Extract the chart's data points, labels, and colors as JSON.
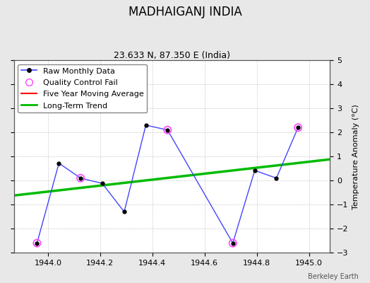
{
  "title": "MADHAIGANJ INDIA",
  "subtitle": "23.633 N, 87.350 E (India)",
  "ylabel": "Temperature Anomaly (°C)",
  "credit": "Berkeley Earth",
  "xlim": [
    1943.87,
    1945.08
  ],
  "ylim": [
    -3,
    5
  ],
  "yticks": [
    -3,
    -2,
    -1,
    0,
    1,
    2,
    3,
    4,
    5
  ],
  "xticks": [
    1944.0,
    1944.2,
    1944.4,
    1944.6,
    1944.8,
    1945.0
  ],
  "raw_x": [
    1943.958,
    1944.042,
    1944.125,
    1944.208,
    1944.292,
    1944.375,
    1944.458,
    1944.708,
    1944.792,
    1944.875,
    1944.958
  ],
  "raw_y": [
    -2.6,
    0.72,
    0.1,
    -0.12,
    -1.3,
    2.3,
    2.1,
    -2.6,
    0.42,
    0.1,
    2.2
  ],
  "qc_fail_x": [
    1943.958,
    1944.125,
    1944.458,
    1944.708,
    1944.958
  ],
  "qc_fail_y": [
    -2.6,
    0.1,
    2.1,
    -2.6,
    2.2
  ],
  "trend_x": [
    1943.87,
    1945.08
  ],
  "trend_y": [
    -0.62,
    0.88
  ],
  "raw_color": "#4444ff",
  "raw_marker_color": "#000000",
  "qc_color": "#ff44ff",
  "trend_color": "#00bb00",
  "fiveyear_color": "#ff0000",
  "bg_color": "#e8e8e8",
  "plot_bg_color": "#ffffff",
  "grid_color": "#cccccc",
  "title_fontsize": 12,
  "subtitle_fontsize": 9,
  "ylabel_fontsize": 8,
  "tick_fontsize": 8,
  "legend_fontsize": 8
}
